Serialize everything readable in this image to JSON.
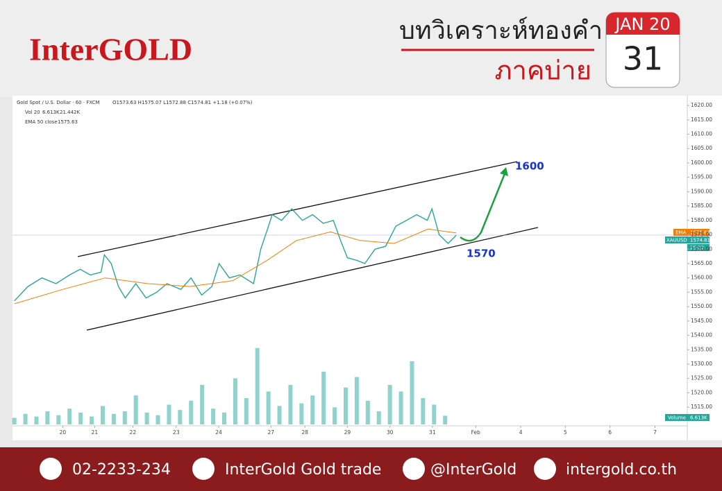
{
  "header": {
    "brand": "InterGOLD",
    "title": "บทวิเคราะห์ทองคำ",
    "subtitle": "ภาคบ่าย"
  },
  "calendar": {
    "month": "JAN 20",
    "day": "31"
  },
  "chart_data": {
    "type": "line",
    "legend": [
      "Gold Spot / U.S. Dollar · 60 · FXCM",
      "O1573.63 H1575.07 L1572.88 C1574.81 +1.18 (+0.07%)",
      "Vol 20",
      "6.613K",
      "21.442K",
      "EMA 50 close",
      "1575.63"
    ],
    "annotations": [
      "1600",
      "1570"
    ],
    "price_labels": [
      "EMA",
      "1575.63",
      "XAUUSD",
      "1574.81",
      "25:22"
    ],
    "volume_label": "Volume",
    "volume_value": "6.613K",
    "xlim": [
      -1.2,
      14.7
    ],
    "ylim": [
      1509,
      1623.4
    ],
    "grid": false,
    "xticks": [
      {
        "value": 0,
        "label": "20"
      },
      {
        "value": 0.75,
        "label": "21"
      },
      {
        "value": 1.65,
        "label": "22"
      },
      {
        "value": 2.67,
        "label": "23"
      },
      {
        "value": 3.67,
        "label": "24"
      },
      {
        "value": 4.9,
        "label": "27"
      },
      {
        "value": 5.7,
        "label": "28"
      },
      {
        "value": 6.7,
        "label": "29"
      },
      {
        "value": 7.7,
        "label": "30"
      },
      {
        "value": 8.7,
        "label": "31"
      },
      {
        "value": 9.72,
        "label": "Feb"
      },
      {
        "value": 10.78,
        "label": "4"
      },
      {
        "value": 11.83,
        "label": "5"
      },
      {
        "value": 12.88,
        "label": "6"
      },
      {
        "value": 13.94,
        "label": "7"
      }
    ],
    "yticks": [
      {
        "value": 1515,
        "label": "1515.00"
      },
      {
        "value": 1520,
        "label": "1520.00"
      },
      {
        "value": 1525,
        "label": "1525.00"
      },
      {
        "value": 1530,
        "label": "1530.00"
      },
      {
        "value": 1535,
        "label": "1535.00"
      },
      {
        "value": 1540,
        "label": "1540.00"
      },
      {
        "value": 1545,
        "label": "1545.00"
      },
      {
        "value": 1550,
        "label": "1550.00"
      },
      {
        "value": 1555,
        "label": "1555.00"
      },
      {
        "value": 1560,
        "label": "1560.00"
      },
      {
        "value": 1565,
        "label": "1565.00"
      },
      {
        "value": 1570,
        "label": "1570.00"
      },
      {
        "value": 1575,
        "label": "1575.00"
      },
      {
        "value": 1580,
        "label": "1580.00"
      },
      {
        "value": 1585,
        "label": "1585.00"
      },
      {
        "value": 1590,
        "label": "1590.00"
      },
      {
        "value": 1595,
        "label": "1595.00"
      },
      {
        "value": 1600,
        "label": "1600.00"
      },
      {
        "value": 1605,
        "label": "1605.00"
      },
      {
        "value": 1610,
        "label": "1610.00"
      },
      {
        "value": 1615,
        "label": "1615.00"
      },
      {
        "value": 1620,
        "label": "1620.00"
      }
    ],
    "series": [
      {
        "name": "XAUUSD",
        "color": "#26a69a",
        "x": [
          -1.14,
          -0.82,
          -0.49,
          -0.16,
          0.16,
          0.41,
          0.65,
          0.9,
          0.98,
          1.14,
          1.31,
          1.47,
          1.72,
          1.96,
          2.21,
          2.45,
          2.78,
          3.02,
          3.27,
          3.51,
          3.68,
          3.92,
          4.17,
          4.49,
          4.66,
          4.82,
          4.93,
          5.15,
          5.39,
          5.64,
          5.88,
          6.13,
          6.37,
          6.54,
          6.7,
          6.94,
          7.11,
          7.35,
          7.6,
          7.84,
          8.09,
          8.33,
          8.58,
          8.69,
          8.86,
          9.07,
          9.26
        ],
        "values": [
          1552,
          1557,
          1560,
          1558,
          1561,
          1563,
          1561,
          1562,
          1568,
          1565,
          1557,
          1553,
          1558,
          1553,
          1555,
          1558,
          1556,
          1560,
          1554,
          1557,
          1565,
          1560,
          1561,
          1558,
          1570,
          1577,
          1582,
          1580,
          1584,
          1580,
          1582,
          1579,
          1580,
          1573,
          1567,
          1566,
          1565,
          1570,
          1571,
          1578,
          1580,
          1582,
          1580,
          1584,
          1575,
          1572,
          1574.81
        ]
      },
      {
        "name": "EMA 50 close",
        "color": "#f57c00",
        "x": [
          -1.14,
          0,
          1,
          2,
          3,
          4,
          4.8,
          5.5,
          6.3,
          7,
          7.8,
          8.6,
          9.26
        ],
        "values": [
          1551,
          1556,
          1560,
          1558,
          1557,
          1559,
          1566,
          1573,
          1576,
          1573,
          1572,
          1577,
          1575.63
        ]
      }
    ],
    "volume": {
      "color": "#8fd3cc",
      "x": [
        -1.14,
        -0.88,
        -0.62,
        -0.36,
        -0.1,
        0.16,
        0.42,
        0.68,
        0.94,
        1.2,
        1.46,
        1.72,
        1.98,
        2.24,
        2.5,
        2.76,
        3.02,
        3.28,
        3.54,
        3.8,
        4.06,
        4.32,
        4.58,
        4.84,
        5.1,
        5.36,
        5.62,
        5.88,
        6.14,
        6.4,
        6.66,
        6.92,
        7.18,
        7.44,
        7.7,
        7.96,
        8.22,
        8.48,
        8.74,
        9.0
      ],
      "values": [
        5,
        8,
        6,
        10,
        7,
        12,
        9,
        6,
        14,
        8,
        10,
        22,
        9,
        7,
        15,
        11,
        18,
        30,
        12,
        9,
        35,
        20,
        58,
        25,
        14,
        30,
        16,
        22,
        40,
        13,
        28,
        36,
        18,
        10,
        30,
        25,
        48,
        20,
        15,
        6.613
      ]
    }
  },
  "footer": {
    "phone": "02-2233-234",
    "facebook": "InterGold Gold trade",
    "line": "@InterGold",
    "web": "intergold.co.th"
  }
}
